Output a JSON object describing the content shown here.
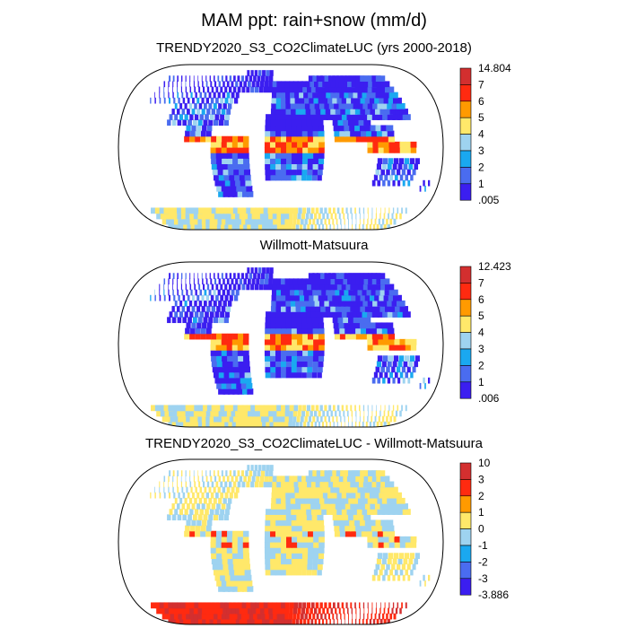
{
  "main_title": "MAM ppt: rain+snow (mm/d)",
  "chart_data": [
    {
      "type": "heatmap",
      "title": "TRENDY2020_S3_CO2ClimateLUC (yrs 2000-2018)",
      "projection": "Robinson global map",
      "colorbar": {
        "labels": [
          "14.804",
          "7",
          "6",
          "5",
          "4",
          "3",
          "2",
          "1",
          ".005"
        ],
        "colors": [
          "#d32f2f",
          "#ff2a10",
          "#ff9a00",
          "#ffe86a",
          "#9ed3f0",
          "#1aa8f0",
          "#4a6cf0",
          "#3b1ef0"
        ],
        "min": 0.005,
        "max": 14.804
      }
    },
    {
      "type": "heatmap",
      "title": "Willmott-Matsuura",
      "projection": "Robinson global map",
      "colorbar": {
        "labels": [
          "12.423",
          "7",
          "6",
          "5",
          "4",
          "3",
          "2",
          "1",
          ".006"
        ],
        "colors": [
          "#d32f2f",
          "#ff2a10",
          "#ff9a00",
          "#ffe86a",
          "#9ed3f0",
          "#1aa8f0",
          "#4a6cf0",
          "#3b1ef0"
        ],
        "min": 0.006,
        "max": 12.423
      }
    },
    {
      "type": "heatmap",
      "title": "TRENDY2020_S3_CO2ClimateLUC - Willmott-Matsuura",
      "projection": "Robinson global map",
      "colorbar": {
        "labels": [
          "10",
          "3",
          "2",
          "1",
          "0",
          "-1",
          "-2",
          "-3",
          "-3.886"
        ],
        "colors": [
          "#d32f2f",
          "#ff2a10",
          "#ff9a00",
          "#ffe86a",
          "#9ed3f0",
          "#1aa8f0",
          "#4a6cf0",
          "#3b1ef0"
        ],
        "min": -3.886,
        "max": 10
      }
    }
  ]
}
